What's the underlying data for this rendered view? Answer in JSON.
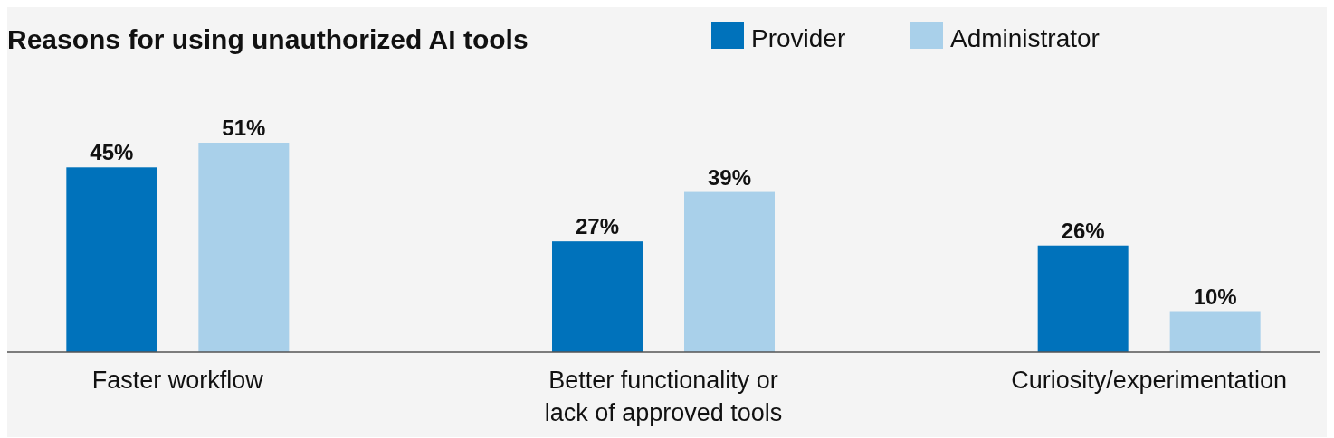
{
  "chart_data": {
    "type": "bar",
    "title": "Reasons for using unauthorized AI tools",
    "categories": [
      "Faster workflow",
      "Better functionality or lack of approved tools",
      "Curiosity/experimentation"
    ],
    "series": [
      {
        "name": "Provider",
        "color": "#0072bb",
        "values": [
          45,
          27,
          26
        ],
        "value_labels": [
          "45%",
          "27%",
          "26%"
        ]
      },
      {
        "name": "Administrator",
        "color": "#a9d0ea",
        "values": [
          51,
          39,
          10
        ],
        "value_labels": [
          "51%",
          "39%",
          "10%"
        ]
      }
    ],
    "legend": "top"
  }
}
